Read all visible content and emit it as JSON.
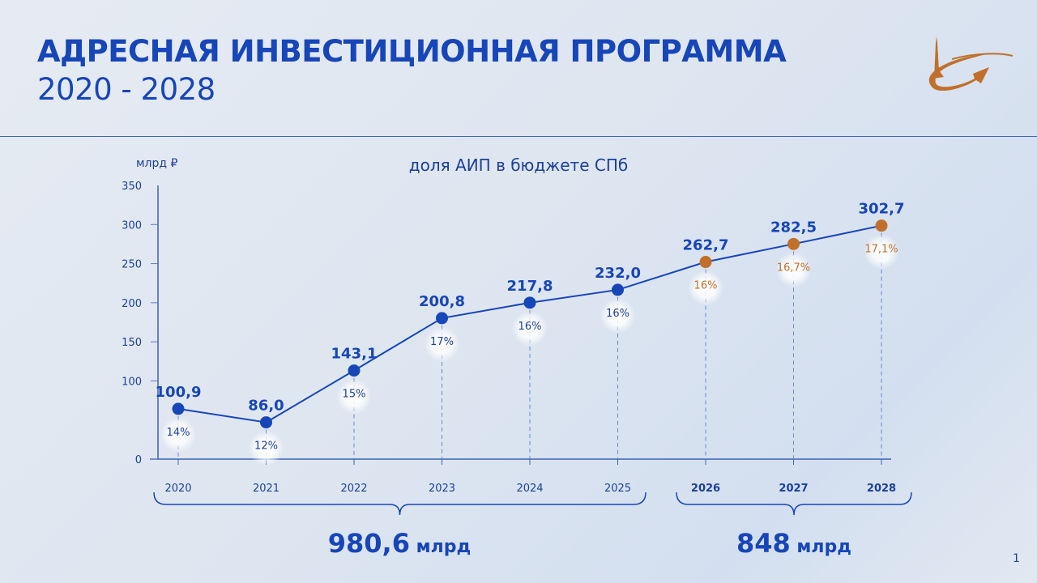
{
  "title": {
    "line1": "АДРЕСНАЯ ИНВЕСТИЦИОННАЯ ПРОГРАММА",
    "line2": "2020 - 2028"
  },
  "page_number": "1",
  "colors": {
    "blue": "#1746b8",
    "orange": "#c0702a"
  },
  "chart_data": {
    "type": "line",
    "title": "доля АИП в бюджете СПб",
    "ylabel": "млрд ₽",
    "ylim": [
      0,
      350
    ],
    "yticks": [
      "0",
      "100",
      "150",
      "200",
      "250",
      "300",
      "350"
    ],
    "categories": [
      "2020",
      "2021",
      "2022",
      "2023",
      "2024",
      "2025",
      "2026",
      "2027",
      "2028"
    ],
    "values": [
      100.9,
      86.0,
      143.1,
      200.8,
      217.8,
      232.0,
      262.7,
      282.5,
      302.7
    ],
    "value_labels": [
      "100,9",
      "86,0",
      "143,1",
      "200,8",
      "217,8",
      "232,0",
      "262,7",
      "282,5",
      "302,7"
    ],
    "share_labels": [
      "14%",
      "12%",
      "15%",
      "17%",
      "16%",
      "16%",
      "16%",
      "16,7%",
      "17,1%"
    ],
    "forecast_from_index": 6,
    "totals": [
      {
        "label": "980,6",
        "unit": "млрд",
        "span": "2020-2025"
      },
      {
        "label": "848",
        "unit": "млрд",
        "span": "2026-2028"
      }
    ]
  }
}
